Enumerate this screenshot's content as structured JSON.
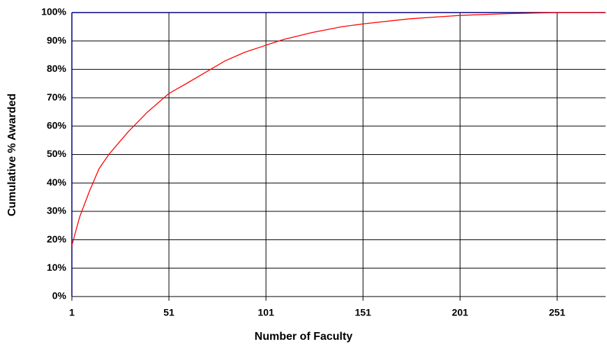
{
  "chart_data": {
    "type": "line",
    "x_label": "Number of Faculty",
    "y_label": "Cumulative % Awarded",
    "x": [
      1,
      5,
      10,
      15,
      20,
      25,
      30,
      40,
      51,
      60,
      70,
      80,
      90,
      101,
      110,
      125,
      140,
      151,
      175,
      201,
      225,
      251,
      276
    ],
    "series": [
      {
        "color": "#ff0000",
        "values": [
          18,
          28,
          37,
          45,
          50,
          54,
          58,
          65,
          71.5,
          75,
          79,
          83,
          86,
          88.5,
          90.5,
          93,
          95,
          96,
          97.8,
          99,
          99.6,
          100,
          100
        ]
      }
    ],
    "xlim": [
      1,
      276
    ],
    "ylim": [
      0,
      100
    ],
    "xticks": [
      1,
      51,
      101,
      151,
      201,
      251
    ],
    "yticks": [
      {
        "value": 0,
        "label": "0%"
      },
      {
        "value": 10,
        "label": "10%"
      },
      {
        "value": 20,
        "label": "20%"
      },
      {
        "value": 30,
        "label": "30%"
      },
      {
        "value": 40,
        "label": "40%"
      },
      {
        "value": 50,
        "label": "50%"
      },
      {
        "value": 60,
        "label": "60%"
      },
      {
        "value": 70,
        "label": "70%"
      },
      {
        "value": 80,
        "label": "80%"
      },
      {
        "value": 90,
        "label": "90%"
      },
      {
        "value": 100,
        "label": "100%"
      }
    ],
    "grid": true
  }
}
